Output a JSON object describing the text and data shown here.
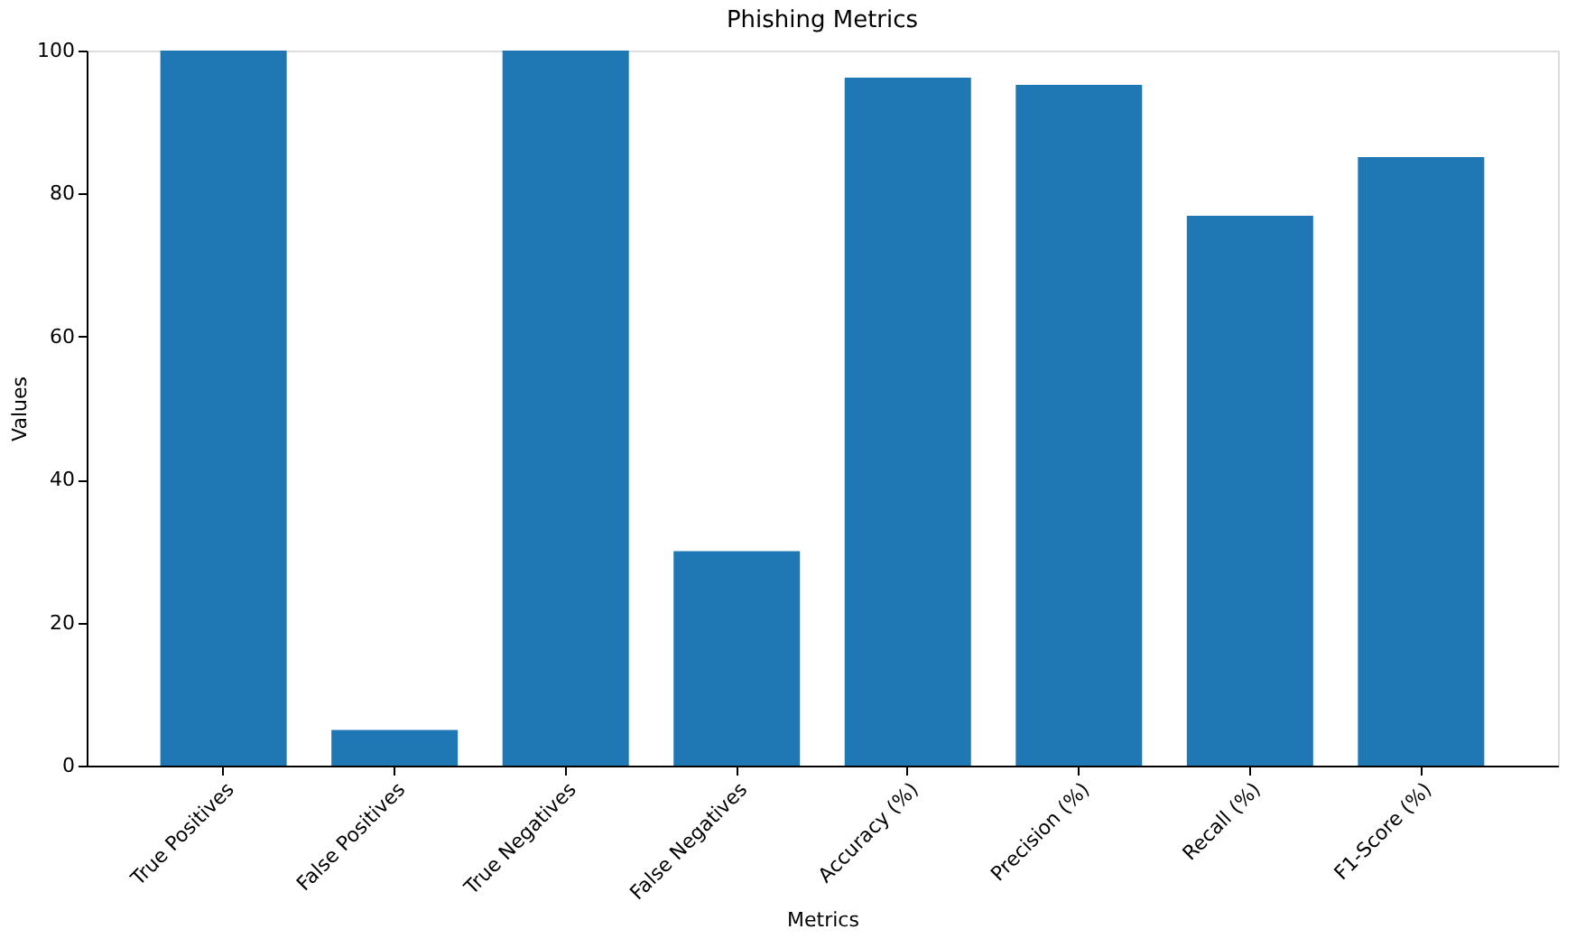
{
  "chart_data": {
    "type": "bar",
    "title": "Phishing Metrics",
    "xlabel": "Metrics",
    "ylabel": "Values",
    "categories": [
      "True Positives",
      "False Positives",
      "True Negatives",
      "False Negatives",
      "Accuracy (%)",
      "Precision (%)",
      "Recall (%)",
      "F1-Score (%)"
    ],
    "values": [
      100,
      5,
      100,
      30,
      96.2,
      95.2,
      76.9,
      85.1
    ],
    "color": "#1f77b4",
    "ylim": [
      0,
      100
    ],
    "yticks": [
      0,
      20,
      40,
      60,
      80,
      100
    ],
    "grid": false
  }
}
